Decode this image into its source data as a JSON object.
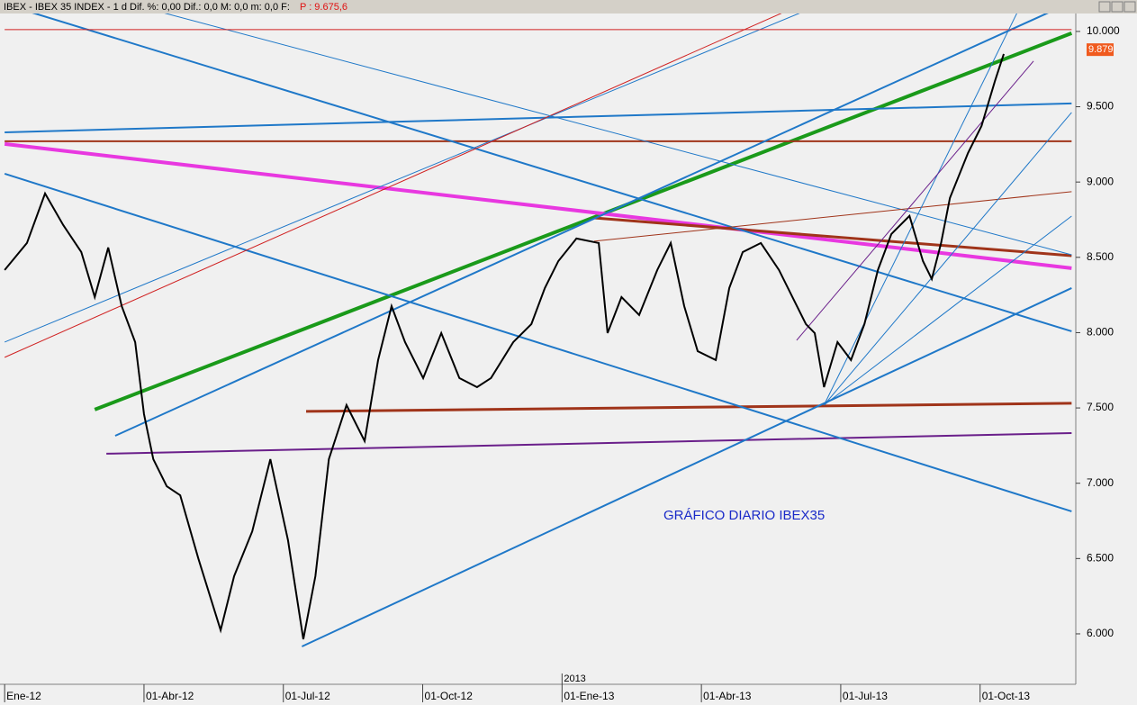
{
  "chart_data": {
    "type": "line",
    "title": "IBEX - IBEX 35 INDEX - 1 d Dif. %: 0,00 Dif.: 0,0 M: 0,0 m: 0,0 F:",
    "subtitle": "P : 9.675,6",
    "annotation": "GRÁFICO DIARIO IBEX35",
    "period_marker": "2013",
    "last_price": {
      "value": 9879,
      "label": "9.879"
    },
    "xlim": [
      -0.1,
      23.06
    ],
    "ylim": [
      5665,
      10125
    ],
    "xticks": [
      {
        "value": 0,
        "label": "Ene-12"
      },
      {
        "value": 3,
        "label": "01-Abr-12"
      },
      {
        "value": 6,
        "label": "01-Jul-12"
      },
      {
        "value": 9,
        "label": "01-Oct-12"
      },
      {
        "value": 12,
        "label": "01-Ene-13"
      },
      {
        "value": 15,
        "label": "01-Abr-13"
      },
      {
        "value": 18,
        "label": "01-Jul-13"
      },
      {
        "value": 21,
        "label": "01-Oct-13"
      }
    ],
    "yticks": [
      {
        "value": 6000,
        "label": "6.000"
      },
      {
        "value": 6500,
        "label": "6.500"
      },
      {
        "value": 7000,
        "label": "7.000"
      },
      {
        "value": 7500,
        "label": "7.500"
      },
      {
        "value": 8000,
        "label": "8.000"
      },
      {
        "value": 8500,
        "label": "8.500"
      },
      {
        "value": 9000,
        "label": "9.000"
      },
      {
        "value": 9500,
        "label": "9.500"
      },
      {
        "value": 10000,
        "label": "10.000"
      }
    ],
    "color": "#000000",
    "x": [
      0,
      0.48,
      0.87,
      1.26,
      1.65,
      1.94,
      2.23,
      2.52,
      2.81,
      3.0,
      3.2,
      3.49,
      3.78,
      4.17,
      4.65,
      4.94,
      5.33,
      5.72,
      6.1,
      6.43,
      6.69,
      6.98,
      7.36,
      7.75,
      8.04,
      8.33,
      8.62,
      9.01,
      9.4,
      9.79,
      10.17,
      10.47,
      10.95,
      11.34,
      11.63,
      11.92,
      12.31,
      12.79,
      12.98,
      13.28,
      13.66,
      14.05,
      14.34,
      14.63,
      14.92,
      15.31,
      15.6,
      15.89,
      16.28,
      16.67,
      16.96,
      17.25,
      17.44,
      17.64,
      17.93,
      18.22,
      18.51,
      18.8,
      19.09,
      19.48,
      19.77,
      19.96,
      20.16,
      20.35,
      20.74,
      21.03,
      21.32,
      21.51
    ],
    "values": [
      8416,
      8595,
      8924,
      8715,
      8535,
      8236,
      8565,
      8176,
      7937,
      7459,
      7160,
      6980,
      6920,
      6500,
      6024,
      6383,
      6680,
      7160,
      6622,
      5964,
      6383,
      7160,
      7519,
      7280,
      7818,
      8176,
      7937,
      7698,
      7997,
      7698,
      7638,
      7698,
      7937,
      8057,
      8296,
      8475,
      8625,
      8595,
      7997,
      8236,
      8117,
      8416,
      8595,
      8176,
      7877,
      7818,
      8296,
      8535,
      8595,
      8416,
      8236,
      8057,
      7997,
      7638,
      7937,
      7818,
      8057,
      8416,
      8655,
      8775,
      8475,
      8356,
      8595,
      8894,
      9193,
      9372,
      9671,
      9850
    ],
    "trendlines": [
      {
        "color": "#1a9a1a",
        "width": 4,
        "x": [
          1.94,
          22.97
        ],
        "y": [
          7489,
          9988
        ]
      },
      {
        "color": "#e838e0",
        "width": 4,
        "x": [
          0,
          22.97
        ],
        "y": [
          9253,
          8428
        ]
      },
      {
        "color": "#a0341a",
        "width": 3,
        "x": [
          6.49,
          22.97
        ],
        "y": [
          7477,
          7531
        ]
      },
      {
        "color": "#a0341a",
        "width": 3,
        "x": [
          12.69,
          22.97
        ],
        "y": [
          8762,
          8511
        ]
      },
      {
        "color": "#a0341a",
        "width": 2,
        "x": [
          0,
          22.97
        ],
        "y": [
          9271,
          9271
        ]
      },
      {
        "color": "#6a1f8a",
        "width": 2,
        "x": [
          2.19,
          22.97
        ],
        "y": [
          7196,
          7333
        ]
      },
      {
        "color": "#1f78c8",
        "width": 2,
        "x": [
          6.4,
          22.97
        ],
        "y": [
          5916,
          8296
        ]
      },
      {
        "color": "#1f78c8",
        "width": 2,
        "x": [
          0,
          22.97
        ],
        "y": [
          9055,
          6813
        ]
      },
      {
        "color": "#1f78c8",
        "width": 2,
        "x": [
          0.58,
          22.97
        ],
        "y": [
          10126,
          8009
        ]
      },
      {
        "color": "#1f78c8",
        "width": 2,
        "x": [
          2.38,
          22.48
        ],
        "y": [
          7315,
          10126
        ]
      },
      {
        "color": "#1f78c8",
        "width": 2,
        "x": [
          0,
          22.97
        ],
        "y": [
          9330,
          9522
        ]
      },
      {
        "color": "#1f78c8",
        "width": 1,
        "x": [
          0,
          17.15
        ],
        "y": [
          7937,
          10126
        ]
      },
      {
        "color": "#d02020",
        "width": 1,
        "x": [
          0,
          16.76
        ],
        "y": [
          7836,
          10126
        ]
      },
      {
        "color": "#1f78c8",
        "width": 1,
        "x": [
          3.39,
          22.97
        ],
        "y": [
          10126,
          8517
        ]
      },
      {
        "color": "#d02020",
        "width": 1,
        "x": [
          0,
          22.97
        ],
        "y": [
          10012,
          10012
        ]
      },
      {
        "color": "#a0341a",
        "width": 1,
        "x": [
          12.69,
          22.97
        ],
        "y": [
          8607,
          8936
        ]
      },
      {
        "color": "#1f78c8",
        "width": 1,
        "x": [
          17.64,
          22.97
        ],
        "y": [
          7519,
          8774
        ]
      },
      {
        "color": "#1f78c8",
        "width": 1,
        "x": [
          17.64,
          22.97
        ],
        "y": [
          7519,
          9462
        ]
      },
      {
        "color": "#1f78c8",
        "width": 1,
        "x": [
          17.64,
          21.8
        ],
        "y": [
          7519,
          10126
        ]
      },
      {
        "color": "#6a1f8a",
        "width": 1,
        "x": [
          17.05,
          22.15
        ],
        "y": [
          7949,
          9803
        ]
      }
    ]
  }
}
